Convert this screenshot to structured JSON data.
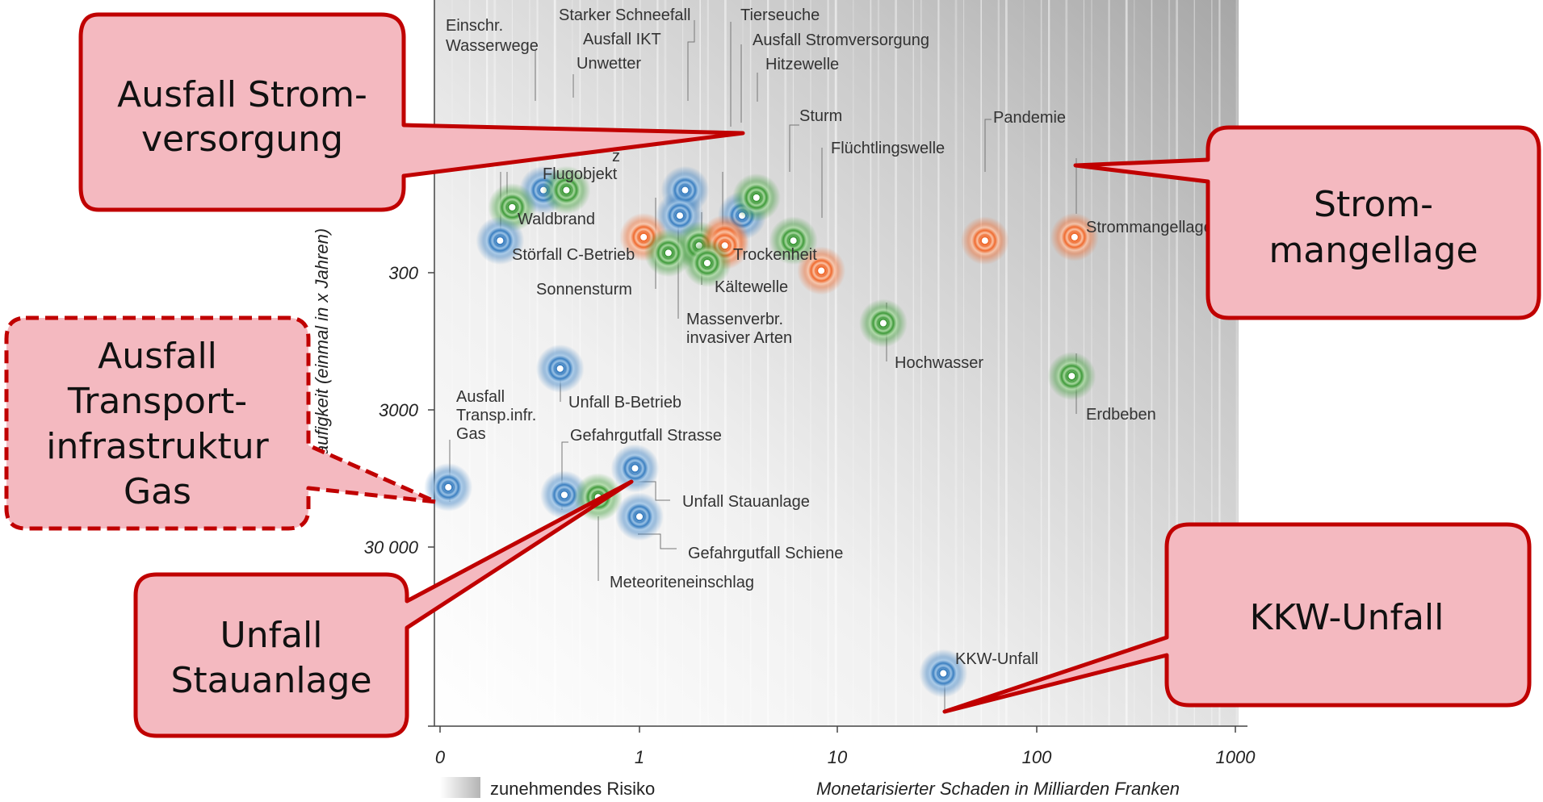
{
  "chart_data": {
    "type": "scatter",
    "x_scale": "log-like",
    "y_scale": "log, inverted",
    "x_ticks": [
      {
        "v": 0.1,
        "label": "0"
      },
      {
        "v": 1,
        "label": "1"
      },
      {
        "v": 10,
        "label": "10"
      },
      {
        "v": 100,
        "label": "100"
      },
      {
        "v": 1000,
        "label": "1000"
      }
    ],
    "y_ticks": [
      {
        "v": 300,
        "label": "300"
      },
      {
        "v": 3000,
        "label": "3000"
      },
      {
        "v": 30000,
        "label": "30 000"
      }
    ],
    "xlim": [
      0.1,
      1000
    ],
    "ylim": [
      30,
      300000
    ],
    "xlabel": "Monetarisierter Schaden in Milliarden Franken",
    "ylabel": "Häufigkeit (einmal in x Jahren)",
    "legend_label": "zunehmendes Risiko",
    "colors": {
      "blue": "#3b7fc0",
      "green": "#3f9a3a",
      "orange": "#ef6a2e"
    },
    "points": [
      {
        "name": "Einschr. Wasserwege",
        "x": 0.33,
        "y": 75,
        "color": "blue"
      },
      {
        "name": "Unwetter",
        "x": 0.43,
        "y": 75,
        "color": "green"
      },
      {
        "name": "Starker Schneefall",
        "x": 0.23,
        "y": 100,
        "color": "green"
      },
      {
        "name": "Ausfall IKT",
        "x": 1.7,
        "y": 75,
        "color": "blue"
      },
      {
        "name": "Tierseuche",
        "x": 1.6,
        "y": 115,
        "color": "blue"
      },
      {
        "name": "Ausfall Stromversorgung",
        "x": 3.3,
        "y": 115,
        "color": "blue"
      },
      {
        "name": "Hitzewelle",
        "x": 3.9,
        "y": 85,
        "color": "green"
      },
      {
        "name": "Absturz Flugobjekt",
        "x": 0.2,
        "y": 175,
        "color": "blue"
      },
      {
        "name": "Waldbrand",
        "x": 1.05,
        "y": 165,
        "color": "orange"
      },
      {
        "name": "Störfall C-Betrieb",
        "x": 2.0,
        "y": 190,
        "color": "green"
      },
      {
        "name": "Sonnensturm",
        "x": 2.7,
        "y": 170,
        "color": "orange"
      },
      {
        "name": "Sturm",
        "x": 6.0,
        "y": 175,
        "color": "green"
      },
      {
        "name": "Trockenheit",
        "x": 2.7,
        "y": 190,
        "color": "orange"
      },
      {
        "name": "Kältewelle",
        "x": 2.2,
        "y": 255,
        "color": "green"
      },
      {
        "name": "Massenverbr. invasiver Arten",
        "x": 1.4,
        "y": 215,
        "color": "green"
      },
      {
        "name": "Flüchtlingswelle",
        "x": 8.3,
        "y": 290,
        "color": "orange"
      },
      {
        "name": "Pandemie",
        "x": 55,
        "y": 175,
        "color": "orange"
      },
      {
        "name": "Strommangellage",
        "x": 155,
        "y": 165,
        "color": "orange"
      },
      {
        "name": "Hochwasser",
        "x": 17,
        "y": 700,
        "color": "green"
      },
      {
        "name": "Erdbeben",
        "x": 150,
        "y": 1700,
        "color": "green"
      },
      {
        "name": "Unfall B-Betrieb",
        "x": 0.4,
        "y": 1500,
        "color": "blue"
      },
      {
        "name": "Ausfall Transp.infr. Gas",
        "x": 0.11,
        "y": 11000,
        "color": "blue"
      },
      {
        "name": "Gefahrgutfall Strasse",
        "x": 0.42,
        "y": 12500,
        "color": "blue"
      },
      {
        "name": "Meteoriteneinschlag",
        "x": 0.62,
        "y": 13000,
        "color": "green"
      },
      {
        "name": "Unfall Stauanlage",
        "x": 0.95,
        "y": 8000,
        "color": "blue"
      },
      {
        "name": "Gefahrgutfall Schiene",
        "x": 1.0,
        "y": 18000,
        "color": "blue"
      },
      {
        "name": "KKW-Unfall",
        "x": 34,
        "y": 250000,
        "color": "blue"
      }
    ]
  },
  "labels": {
    "starker_schneefall": "Starker Schneefall",
    "tierseuche": "Tierseuche",
    "einschr1": "Einschr.",
    "einschr2": "Wasserwege",
    "ausfall_ikt": "Ausfall IKT",
    "ausfall_strom": "Ausfall Stromversorgung",
    "unwetter": "Unwetter",
    "hitzewelle": "Hitzewelle",
    "sturm": "Sturm",
    "pandemie": "Pandemie",
    "fluechtlingswelle": "Flüchtlingswelle",
    "flugobjekt": "Flugobjekt",
    "flugobjekt_partial": "z",
    "waldbrand": "Waldbrand",
    "stoerfall": "Störfall C-Betrieb",
    "sonnensturm": "Sonnensturm",
    "trockenheit": "Trockenheit",
    "kaeltewelle": "Kältewelle",
    "massen1": "Massenverbr.",
    "massen2": "invasiver Arten",
    "strommangellage": "Strommangellage",
    "hochwasser": "Hochwasser",
    "erdbeben": "Erdbeben",
    "unfall_b": "Unfall B-Betrieb",
    "gas1": "Ausfall",
    "gas2": "Transp.infr.",
    "gas3": "Gas",
    "gefahrgut_strasse": "Gefahrgutfall Strasse",
    "unfall_stau": "Unfall Stauanlage",
    "gefahrgut_schiene": "Gefahrgutfall Schiene",
    "meteorit": "Meteoriteneinschlag",
    "kkw": "KKW-Unfall"
  },
  "callouts": {
    "strom1": "Ausfall Strom-",
    "strom2": "versorgung",
    "mangel1": "Strom-",
    "mangel2": "mangellage",
    "gas1": "Ausfall",
    "gas2": "Transport-",
    "gas3": "infrastruktur",
    "gas4": "Gas",
    "stau1": "Unfall",
    "stau2": "Stauanlage",
    "kkw": "KKW-Unfall"
  }
}
